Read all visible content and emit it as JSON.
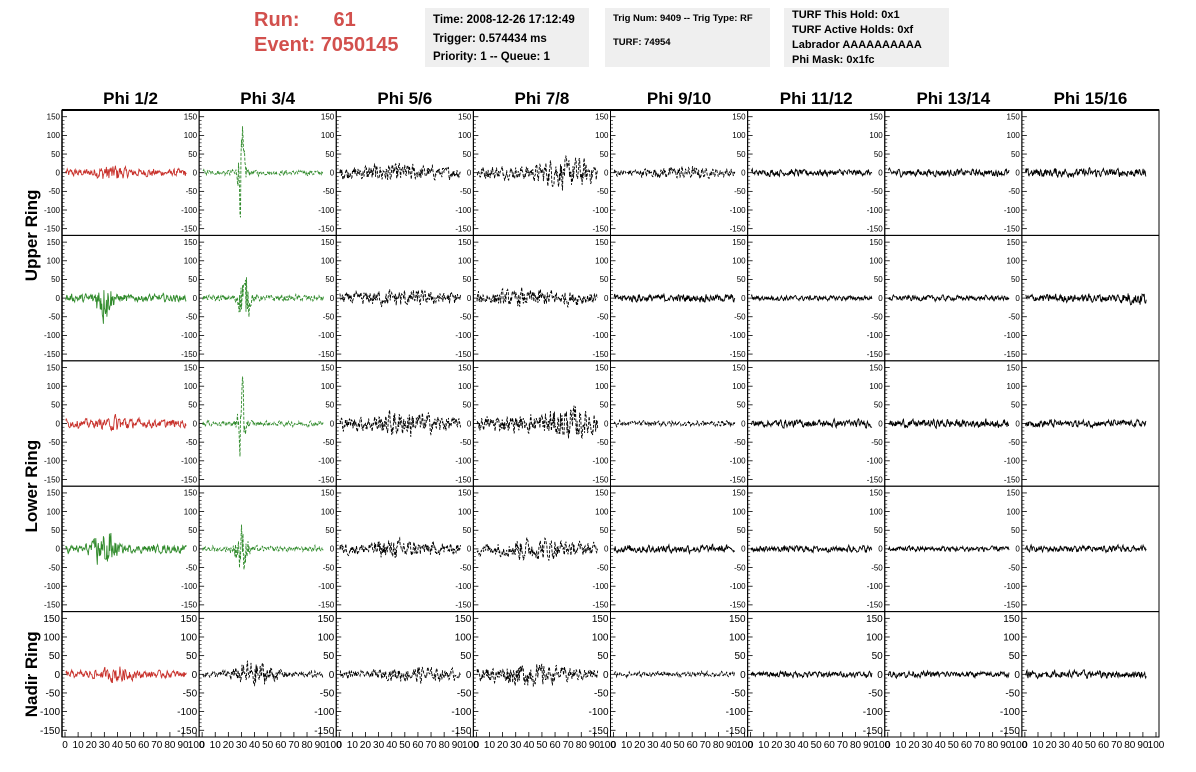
{
  "header": {
    "run_label": "Run:",
    "run_value": "61",
    "event_label": "Event:",
    "event_value": "7050145",
    "accent_color": "#d2504d"
  },
  "info_boxes": {
    "time": "Time: 2008-12-26 17:12:49",
    "trigger": "Trigger: 0.574434 ms",
    "priority": "Priority: 1 -- Queue: 1",
    "trig_num": "Trig Num: 9409 -- Trig Type: RF",
    "turf": "TURF: 74954",
    "turf_this_hold": "TURF This Hold: 0x1",
    "turf_active_holds": "TURF Active Holds: 0xf",
    "labrador": "Labrador AAAAAAAAAA",
    "phi_mask": "Phi Mask: 0x1fc"
  },
  "chart_data": {
    "type": "line",
    "columns": [
      "Phi 1/2",
      "Phi 3/4",
      "Phi 5/6",
      "Phi 7/8",
      "Phi 9/10",
      "Phi 11/12",
      "Phi 13/14",
      "Phi 15/16"
    ],
    "rows": [
      "Upper Ring",
      "Lower Ring",
      "Nadir Ring"
    ],
    "ylim": [
      -160,
      160
    ],
    "yticks": [
      "150",
      "100",
      "50",
      "0",
      "-50",
      "-100",
      "-150"
    ],
    "xlim": [
      0,
      100
    ],
    "xticks": [
      "0",
      "10",
      "20",
      "30",
      "40",
      "50",
      "60",
      "70",
      "80",
      "90",
      "100"
    ],
    "colors": {
      "red": "#c8312b",
      "green": "#2f8a2a",
      "black": "#000000"
    },
    "panels": [
      [
        {
          "color": "red",
          "dash": false,
          "amp": 14,
          "burst": {
            "pos": 35,
            "width": 10,
            "amp": 18
          }
        },
        {
          "color": "green",
          "dash": true,
          "amp": 10,
          "burst": {
            "pos": 30,
            "width": 3,
            "amp": 150
          }
        },
        {
          "color": "black",
          "dash": true,
          "amp": 22,
          "burst": {
            "pos": 40,
            "width": 20,
            "amp": 15
          }
        },
        {
          "color": "black",
          "dash": true,
          "amp": 22,
          "burst": {
            "pos": 70,
            "width": 20,
            "amp": 35
          }
        },
        {
          "color": "black",
          "dash": true,
          "amp": 14,
          "burst": {
            "pos": 50,
            "width": 20,
            "amp": 12
          }
        },
        {
          "color": "black",
          "dash": false,
          "amp": 12,
          "burst": null
        },
        {
          "color": "black",
          "dash": false,
          "amp": 13,
          "burst": null
        },
        {
          "color": "black",
          "dash": false,
          "amp": 16,
          "burst": null
        }
      ],
      [
        {
          "color": "green",
          "dash": false,
          "amp": 14,
          "burst": {
            "pos": 30,
            "width": 6,
            "amp": 80
          }
        },
        {
          "color": "green",
          "dash": true,
          "amp": 12,
          "burst": {
            "pos": 32,
            "width": 4,
            "amp": 110
          }
        },
        {
          "color": "black",
          "dash": true,
          "amp": 20,
          "burst": {
            "pos": 50,
            "width": 30,
            "amp": 12
          }
        },
        {
          "color": "black",
          "dash": true,
          "amp": 22,
          "burst": {
            "pos": 45,
            "width": 25,
            "amp": 14
          }
        },
        {
          "color": "black",
          "dash": false,
          "amp": 14,
          "burst": null
        },
        {
          "color": "black",
          "dash": false,
          "amp": 9,
          "burst": null
        },
        {
          "color": "black",
          "dash": false,
          "amp": 10,
          "burst": null
        },
        {
          "color": "black",
          "dash": false,
          "amp": 15,
          "burst": {
            "pos": 85,
            "width": 10,
            "amp": 12
          }
        }
      ],
      [
        {
          "color": "red",
          "dash": false,
          "amp": 15,
          "burst": {
            "pos": 40,
            "width": 10,
            "amp": 15
          }
        },
        {
          "color": "green",
          "dash": true,
          "amp": 10,
          "burst": {
            "pos": 30,
            "width": 3,
            "amp": 130
          }
        },
        {
          "color": "black",
          "dash": true,
          "amp": 22,
          "burst": {
            "pos": 50,
            "width": 25,
            "amp": 25
          }
        },
        {
          "color": "black",
          "dash": true,
          "amp": 28,
          "burst": {
            "pos": 70,
            "width": 20,
            "amp": 35
          }
        },
        {
          "color": "black",
          "dash": true,
          "amp": 10,
          "burst": null
        },
        {
          "color": "black",
          "dash": false,
          "amp": 14,
          "burst": null
        },
        {
          "color": "black",
          "dash": false,
          "amp": 15,
          "burst": null
        },
        {
          "color": "black",
          "dash": false,
          "amp": 13,
          "burst": null
        }
      ],
      [
        {
          "color": "green",
          "dash": false,
          "amp": 14,
          "burst": {
            "pos": 30,
            "width": 8,
            "amp": 70
          }
        },
        {
          "color": "green",
          "dash": true,
          "amp": 10,
          "burst": {
            "pos": 30,
            "width": 5,
            "amp": 80
          }
        },
        {
          "color": "black",
          "dash": true,
          "amp": 20,
          "burst": {
            "pos": 45,
            "width": 25,
            "amp": 15
          }
        },
        {
          "color": "black",
          "dash": true,
          "amp": 22,
          "burst": {
            "pos": 45,
            "width": 25,
            "amp": 20
          }
        },
        {
          "color": "black",
          "dash": false,
          "amp": 14,
          "burst": null
        },
        {
          "color": "black",
          "dash": false,
          "amp": 12,
          "burst": null
        },
        {
          "color": "black",
          "dash": false,
          "amp": 10,
          "burst": null
        },
        {
          "color": "black",
          "dash": false,
          "amp": 12,
          "burst": null
        }
      ],
      [
        {
          "color": "red",
          "dash": false,
          "amp": 13,
          "burst": {
            "pos": 40,
            "width": 12,
            "amp": 18
          }
        },
        {
          "color": "black",
          "dash": true,
          "amp": 12,
          "burst": {
            "pos": 40,
            "width": 15,
            "amp": 40
          }
        },
        {
          "color": "black",
          "dash": true,
          "amp": 14,
          "burst": {
            "pos": 60,
            "width": 25,
            "amp": 15
          }
        },
        {
          "color": "black",
          "dash": true,
          "amp": 20,
          "burst": {
            "pos": 40,
            "width": 25,
            "amp": 25
          }
        },
        {
          "color": "black",
          "dash": true,
          "amp": 9,
          "burst": null
        },
        {
          "color": "black",
          "dash": false,
          "amp": 11,
          "burst": null
        },
        {
          "color": "black",
          "dash": false,
          "amp": 11,
          "burst": null
        },
        {
          "color": "black",
          "dash": false,
          "amp": 14,
          "burst": null
        }
      ]
    ]
  }
}
